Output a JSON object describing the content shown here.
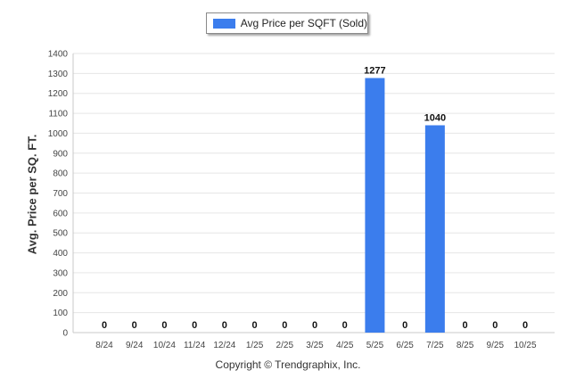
{
  "chart_data": {
    "type": "bar",
    "categories": [
      "8/24",
      "9/24",
      "10/24",
      "11/24",
      "12/24",
      "1/25",
      "2/25",
      "3/25",
      "4/25",
      "5/25",
      "6/25",
      "7/25",
      "8/25",
      "9/25",
      "10/25"
    ],
    "series": [
      {
        "name": "Avg Price per SQFT (Sold)",
        "values": [
          0,
          0,
          0,
          0,
          0,
          0,
          0,
          0,
          0,
          1277,
          0,
          1040,
          0,
          0,
          0
        ]
      }
    ],
    "ylabel": "Avg. Price per SQ. FT.",
    "xlabel": "",
    "ylim": [
      0,
      1400
    ],
    "yticks": [
      0,
      100,
      200,
      300,
      400,
      500,
      600,
      700,
      800,
      900,
      1000,
      1100,
      1200,
      1300,
      1400
    ],
    "grid": true,
    "legend": "top-center",
    "color": "#3b7ded"
  },
  "footer": {
    "copyright": "Copyright © Trendgraphix, Inc."
  }
}
